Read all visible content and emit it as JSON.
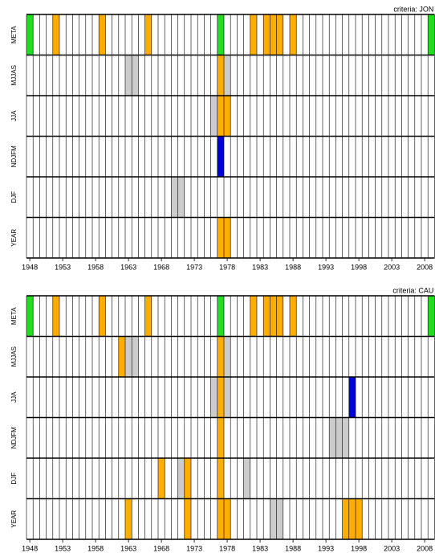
{
  "chart_data": [
    {
      "type": "grid",
      "title": "criteria: JON",
      "xlim": [
        1948,
        2010
      ],
      "xticks": [
        1948,
        1953,
        1958,
        1963,
        1968,
        1973,
        1978,
        1983,
        1988,
        1993,
        1998,
        2003,
        2008
      ],
      "rows": [
        {
          "name": "META",
          "cells": [
            {
              "year": 1948,
              "color": "#22dd22"
            },
            {
              "year": 1952,
              "color": "#ffae00"
            },
            {
              "year": 1959,
              "color": "#ffae00"
            },
            {
              "year": 1966,
              "color": "#ffae00"
            },
            {
              "year": 1977,
              "color": "#22dd22"
            },
            {
              "year": 1982,
              "color": "#ffae00"
            },
            {
              "year": 1984,
              "color": "#ffae00"
            },
            {
              "year": 1985,
              "color": "#ffae00"
            },
            {
              "year": 1986,
              "color": "#ffae00"
            },
            {
              "year": 1988,
              "color": "#ffae00"
            },
            {
              "year": 2009,
              "color": "#22dd22"
            }
          ]
        },
        {
          "name": "MJJAS",
          "cells": [
            {
              "year": 1963,
              "color": "#cccccc"
            },
            {
              "year": 1964,
              "color": "#cccccc"
            },
            {
              "year": 1977,
              "color": "#ffae00"
            },
            {
              "year": 1978,
              "color": "#cccccc"
            }
          ]
        },
        {
          "name": "JJA",
          "cells": [
            {
              "year": 1976,
              "color": "#cccccc"
            },
            {
              "year": 1977,
              "color": "#ffae00"
            },
            {
              "year": 1978,
              "color": "#ffae00"
            }
          ]
        },
        {
          "name": "NDJFM",
          "cells": [
            {
              "year": 1977,
              "color": "#0000dd"
            }
          ]
        },
        {
          "name": "DJF",
          "cells": [
            {
              "year": 1970,
              "color": "#cccccc"
            },
            {
              "year": 1971,
              "color": "#cccccc"
            }
          ]
        },
        {
          "name": "YEAR",
          "cells": [
            {
              "year": 1977,
              "color": "#ffae00"
            },
            {
              "year": 1978,
              "color": "#ffae00"
            }
          ]
        }
      ]
    },
    {
      "type": "grid",
      "title": "criteria: CAU",
      "xlim": [
        1948,
        2010
      ],
      "xticks": [
        1948,
        1953,
        1958,
        1963,
        1968,
        1973,
        1978,
        1983,
        1988,
        1993,
        1998,
        2003,
        2008
      ],
      "rows": [
        {
          "name": "META",
          "cells": [
            {
              "year": 1948,
              "color": "#22dd22"
            },
            {
              "year": 1952,
              "color": "#ffae00"
            },
            {
              "year": 1959,
              "color": "#ffae00"
            },
            {
              "year": 1966,
              "color": "#ffae00"
            },
            {
              "year": 1977,
              "color": "#22dd22"
            },
            {
              "year": 1982,
              "color": "#ffae00"
            },
            {
              "year": 1984,
              "color": "#ffae00"
            },
            {
              "year": 1985,
              "color": "#ffae00"
            },
            {
              "year": 1986,
              "color": "#ffae00"
            },
            {
              "year": 1988,
              "color": "#ffae00"
            },
            {
              "year": 2009,
              "color": "#22dd22"
            }
          ]
        },
        {
          "name": "MJJAS",
          "cells": [
            {
              "year": 1962,
              "color": "#ffae00"
            },
            {
              "year": 1963,
              "color": "#cccccc"
            },
            {
              "year": 1964,
              "color": "#cccccc"
            },
            {
              "year": 1977,
              "color": "#ffae00"
            },
            {
              "year": 1978,
              "color": "#cccccc"
            }
          ]
        },
        {
          "name": "JJA",
          "cells": [
            {
              "year": 1976,
              "color": "#cccccc"
            },
            {
              "year": 1977,
              "color": "#ffae00"
            },
            {
              "year": 1978,
              "color": "#cccccc"
            },
            {
              "year": 1997,
              "color": "#0000dd"
            }
          ]
        },
        {
          "name": "NDJFM",
          "cells": [
            {
              "year": 1977,
              "color": "#ffae00"
            },
            {
              "year": 1994,
              "color": "#cccccc"
            },
            {
              "year": 1995,
              "color": "#cccccc"
            },
            {
              "year": 1996,
              "color": "#cccccc"
            }
          ]
        },
        {
          "name": "DJF",
          "cells": [
            {
              "year": 1968,
              "color": "#ffae00"
            },
            {
              "year": 1971,
              "color": "#cccccc"
            },
            {
              "year": 1972,
              "color": "#ffae00"
            },
            {
              "year": 1977,
              "color": "#ffae00"
            },
            {
              "year": 1981,
              "color": "#cccccc"
            }
          ]
        },
        {
          "name": "YEAR",
          "cells": [
            {
              "year": 1963,
              "color": "#ffae00"
            },
            {
              "year": 1972,
              "color": "#ffae00"
            },
            {
              "year": 1977,
              "color": "#ffae00"
            },
            {
              "year": 1978,
              "color": "#ffae00"
            },
            {
              "year": 1985,
              "color": "#cccccc"
            },
            {
              "year": 1986,
              "color": "#cccccc"
            },
            {
              "year": 1996,
              "color": "#ffae00"
            },
            {
              "year": 1997,
              "color": "#ffae00"
            },
            {
              "year": 1998,
              "color": "#ffae00"
            }
          ]
        }
      ]
    }
  ]
}
